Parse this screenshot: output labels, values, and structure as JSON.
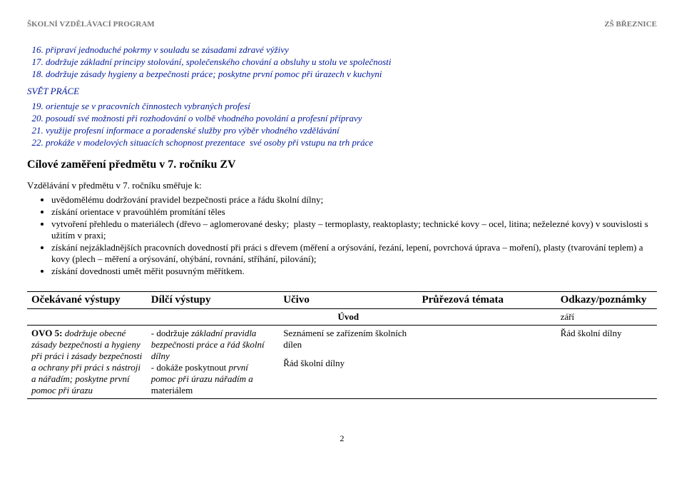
{
  "header": {
    "left": "ŠKOLNÍ VZDĚLÁVACÍ PROGRAM",
    "right": "ZŠ BŘEZNICE"
  },
  "list1": {
    "start": 16,
    "items": [
      "připraví jednoduché pokrmy v souladu se zásadami zdravé výživy",
      "dodržuje základní principy stolování, společenského chování a obsluhy u stolu ve společnosti",
      "dodržuje zásady hygieny a bezpečnosti práce; poskytne první pomoc při úrazech v kuchyni"
    ]
  },
  "svet": "SVĚT PRÁCE",
  "list2": {
    "start": 19,
    "items": [
      "orientuje se v pracovních činnostech vybraných profesí",
      "posoudí své možnosti při rozhodování o volbě vhodného povolání a profesní přípravy",
      "využije profesní informace a poradenské služby pro výběr vhodného vzdělávání",
      "prokáže v modelových situacích schopnost prezentace  své osoby při vstupu na trh práce"
    ]
  },
  "h3": "Cílové zaměření předmětu v 7. ročníku ZV",
  "intro": "Vzdělávání v předmětu v 7. ročníku směřuje k:",
  "bullets": [
    "uvědomělému dodržování pravidel bezpečnosti práce a řádu školní dílny;",
    "získání orientace v pravoúhlém promítání těles",
    "vytvoření přehledu o materiálech (dřevo – aglomerované desky;  plasty – termoplasty, reaktoplasty; technické kovy – ocel, litina; neželezné kovy) v souvislosti s užitím v praxi;",
    "získání nejzákladnějších pracovních dovedností při práci s dřevem (měření a orýsování, řezání, lepení, povrchová úprava – moření), plasty (tvarování teplem) a kovy (plech – měření a orýsování, ohýbání, rovnání, stříhání, pilování);",
    "získání dovednosti umět měřit posuvným měřítkem."
  ],
  "table": {
    "headers": [
      "Očekávané výstupy",
      "Dílčí výstupy",
      "Učivo",
      "Průřezová témata",
      "Odkazy/poznámky"
    ],
    "sub": {
      "uvod": "Úvod",
      "zari": "září"
    },
    "row": {
      "c1a": "OVO 5:",
      "c1b": " dodržuje obecné zásady bezpečnosti a hygieny při práci i zásady bezpečnosti a ochrany při práci s nástroji a nářadím; poskytne první pomoc při úrazu",
      "c2a": "- dodržuje ",
      "c2b": "základní pravidla bezpečnosti práce a řád školní dílny",
      "c2c": "- dokáže ",
      "c2d": "poskytnout",
      "c2e": " první pomoc při úrazu nářadím a ",
      "c2f": "materiálem",
      "c3a": "Seznámení se zařízením školních dílen",
      "c3b": "Řád školní dílny",
      "c5": "Řád školní dílny"
    }
  },
  "page": "2"
}
